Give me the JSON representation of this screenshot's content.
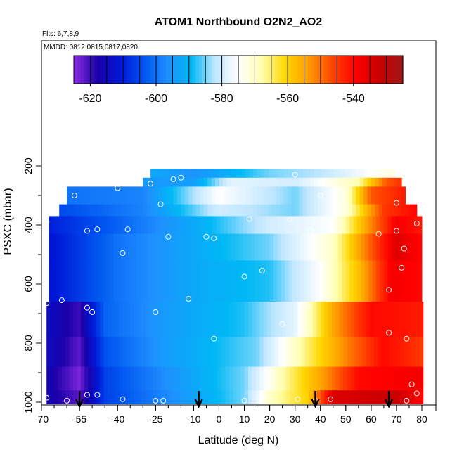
{
  "chart_data": {
    "type": "heatmap",
    "title": "ATOM1 Northbound O2N2_AO2",
    "subtitle_lines": [
      "Flts: 6,7,8,9",
      "MMDD: 0812,0815,0817,0820"
    ],
    "xlabel": "Latitude (deg N)",
    "ylabel": "PSXC (mbar)",
    "xlim": [
      -70,
      80
    ],
    "ylim": [
      1000,
      0
    ],
    "x_ticks": [
      -70,
      -60,
      -55,
      -40,
      -30,
      -25,
      -10,
      -5,
      0,
      5,
      10,
      20,
      25,
      30,
      35,
      40,
      45,
      50,
      55,
      60,
      65,
      70,
      75,
      80
    ],
    "x_tick_labels": [
      "-70",
      "-55",
      "-40",
      "-25",
      "-10",
      "0",
      "10",
      "20",
      "30",
      "40",
      "50",
      "60",
      "70",
      "80"
    ],
    "x_tick_label_values": [
      -70,
      -55,
      -40,
      -25,
      -10,
      0,
      10,
      20,
      30,
      40,
      50,
      60,
      70,
      80
    ],
    "y_tick_labels": [
      "200",
      "400",
      "600",
      "800",
      "1000"
    ],
    "y_tick_values": [
      200,
      400,
      600,
      800,
      1000
    ],
    "colorbar": {
      "ticks": [
        -620,
        -600,
        -580,
        -560,
        -540
      ],
      "tick_labels": [
        "-620",
        "-600",
        "-580",
        "-560",
        "-540"
      ],
      "range": [
        -625,
        -525
      ],
      "colors": [
        "#8a2be2",
        "#1a00a8",
        "#0018d8",
        "#0055f0",
        "#1f90ff",
        "#00b8f5",
        "#bfe6ff",
        "#ffffff",
        "#ffffb0",
        "#ffd700",
        "#ff9a00",
        "#ff4500",
        "#ff0000",
        "#c80000",
        "#a01818"
      ]
    },
    "field": {
      "description_rows": [
        {
          "p_top": 210,
          "p_bot": 240,
          "lat_min": -27,
          "lat_max": 69,
          "anchors": [
            [
              -27,
              -592
            ],
            [
              -10,
              -596
            ],
            [
              20,
              -585
            ],
            [
              40,
              -582
            ],
            [
              60,
              -575
            ],
            [
              69,
              -572
            ]
          ]
        },
        {
          "p_top": 240,
          "p_bot": 270,
          "lat_min": -30,
          "lat_max": 71,
          "anchors": [
            [
              -30,
              -595
            ],
            [
              -10,
              -594
            ],
            [
              5,
              -578
            ],
            [
              30,
              -580
            ],
            [
              55,
              -568
            ],
            [
              66,
              -548
            ],
            [
              71,
              -545
            ]
          ]
        },
        {
          "p_top": 270,
          "p_bot": 330,
          "lat_min": -60,
          "lat_max": 73,
          "anchors": [
            [
              -60,
              -600
            ],
            [
              -30,
              -598
            ],
            [
              0,
              -575
            ],
            [
              30,
              -585
            ],
            [
              50,
              -572
            ],
            [
              60,
              -548
            ],
            [
              73,
              -542
            ]
          ]
        },
        {
          "p_top": 330,
          "p_bot": 370,
          "lat_min": -63,
          "lat_max": 77,
          "anchors": [
            [
              -63,
              -605
            ],
            [
              -30,
              -598
            ],
            [
              0,
              -580
            ],
            [
              30,
              -585
            ],
            [
              50,
              -572
            ],
            [
              65,
              -545
            ],
            [
              77,
              -540
            ]
          ]
        },
        {
          "p_top": 370,
          "p_bot": 430,
          "lat_min": -67,
          "lat_max": 80,
          "anchors": [
            [
              -67,
              -610
            ],
            [
              -40,
              -602
            ],
            [
              -10,
              -592
            ],
            [
              20,
              -580
            ],
            [
              45,
              -575
            ],
            [
              60,
              -552
            ],
            [
              70,
              -538
            ],
            [
              80,
              -542
            ]
          ]
        },
        {
          "p_top": 430,
          "p_bot": 520,
          "lat_min": -67,
          "lat_max": 80,
          "anchors": [
            [
              -67,
              -612
            ],
            [
              -40,
              -600
            ],
            [
              -10,
              -592
            ],
            [
              20,
              -585
            ],
            [
              45,
              -570
            ],
            [
              60,
              -548
            ],
            [
              70,
              -535
            ],
            [
              80,
              -540
            ]
          ]
        },
        {
          "p_top": 520,
          "p_bot": 660,
          "lat_min": -67,
          "lat_max": 80,
          "anchors": [
            [
              -67,
              -612
            ],
            [
              -40,
              -600
            ],
            [
              -10,
              -592
            ],
            [
              20,
              -588
            ],
            [
              40,
              -575
            ],
            [
              55,
              -558
            ],
            [
              68,
              -538
            ],
            [
              80,
              -540
            ]
          ]
        },
        {
          "p_top": 660,
          "p_bot": 780,
          "lat_min": -68,
          "lat_max": 80,
          "anchors": [
            [
              -68,
              -614
            ],
            [
              -55,
              -620
            ],
            [
              -45,
              -602
            ],
            [
              -20,
              -594
            ],
            [
              10,
              -588
            ],
            [
              30,
              -578
            ],
            [
              45,
              -555
            ],
            [
              60,
              -540
            ],
            [
              80,
              -542
            ]
          ]
        },
        {
          "p_top": 780,
          "p_bot": 880,
          "lat_min": -68,
          "lat_max": 80,
          "anchors": [
            [
              -68,
              -614
            ],
            [
              -55,
              -622
            ],
            [
              -45,
              -604
            ],
            [
              -20,
              -594
            ],
            [
              15,
              -585
            ],
            [
              35,
              -565
            ],
            [
              50,
              -552
            ],
            [
              65,
              -540
            ],
            [
              80,
              -545
            ]
          ]
        },
        {
          "p_top": 880,
          "p_bot": 960,
          "lat_min": -68,
          "lat_max": 80,
          "anchors": [
            [
              -68,
              -616
            ],
            [
              -55,
              -624
            ],
            [
              -45,
              -606
            ],
            [
              -20,
              -596
            ],
            [
              10,
              -585
            ],
            [
              25,
              -568
            ],
            [
              40,
              -555
            ],
            [
              55,
              -540
            ],
            [
              80,
              -538
            ]
          ]
        },
        {
          "p_top": 960,
          "p_bot": 1005,
          "lat_min": -68,
          "lat_max": 80,
          "anchors": [
            [
              -68,
              -616
            ],
            [
              -55,
              -622
            ],
            [
              -45,
              -606
            ],
            [
              -20,
              -597
            ],
            [
              10,
              -585
            ],
            [
              20,
              -570
            ],
            [
              35,
              -560
            ],
            [
              45,
              -535
            ],
            [
              70,
              -532
            ],
            [
              80,
              -540
            ]
          ]
        }
      ]
    },
    "sample_points": [
      [
        -68,
        390
      ],
      [
        -68,
        665
      ],
      [
        -68,
        985
      ],
      [
        -62,
        655
      ],
      [
        -60,
        995
      ],
      [
        -57,
        300
      ],
      [
        -52,
        420
      ],
      [
        -52,
        680
      ],
      [
        -52,
        975
      ],
      [
        -50,
        695
      ],
      [
        -48,
        415
      ],
      [
        -48,
        975
      ],
      [
        -40,
        275
      ],
      [
        -38,
        495
      ],
      [
        -38,
        990
      ],
      [
        -36,
        415
      ],
      [
        -27,
        260
      ],
      [
        -25,
        695
      ],
      [
        -25,
        995
      ],
      [
        -23,
        330
      ],
      [
        -22,
        995
      ],
      [
        -20,
        440
      ],
      [
        -18,
        245
      ],
      [
        -15,
        240
      ],
      [
        -12,
        650
      ],
      [
        -5,
        440
      ],
      [
        -2,
        785
      ],
      [
        -2,
        445
      ],
      [
        0,
        295
      ],
      [
        10,
        575
      ],
      [
        10,
        995
      ],
      [
        12,
        380
      ],
      [
        17,
        555
      ],
      [
        25,
        735
      ],
      [
        28,
        380
      ],
      [
        30,
        230
      ],
      [
        31,
        990
      ],
      [
        35,
        675
      ],
      [
        36,
        420
      ],
      [
        38,
        995
      ],
      [
        40,
        300
      ],
      [
        44,
        990
      ],
      [
        63,
        430
      ],
      [
        67,
        620
      ],
      [
        67,
        765
      ],
      [
        70,
        420
      ],
      [
        70,
        325
      ],
      [
        72,
        545
      ],
      [
        73,
        480
      ],
      [
        74,
        785
      ],
      [
        74,
        995
      ],
      [
        76,
        940
      ],
      [
        78,
        395
      ],
      [
        78,
        970
      ]
    ],
    "arrows_at_surface": [
      -55,
      -8,
      38,
      67
    ]
  }
}
